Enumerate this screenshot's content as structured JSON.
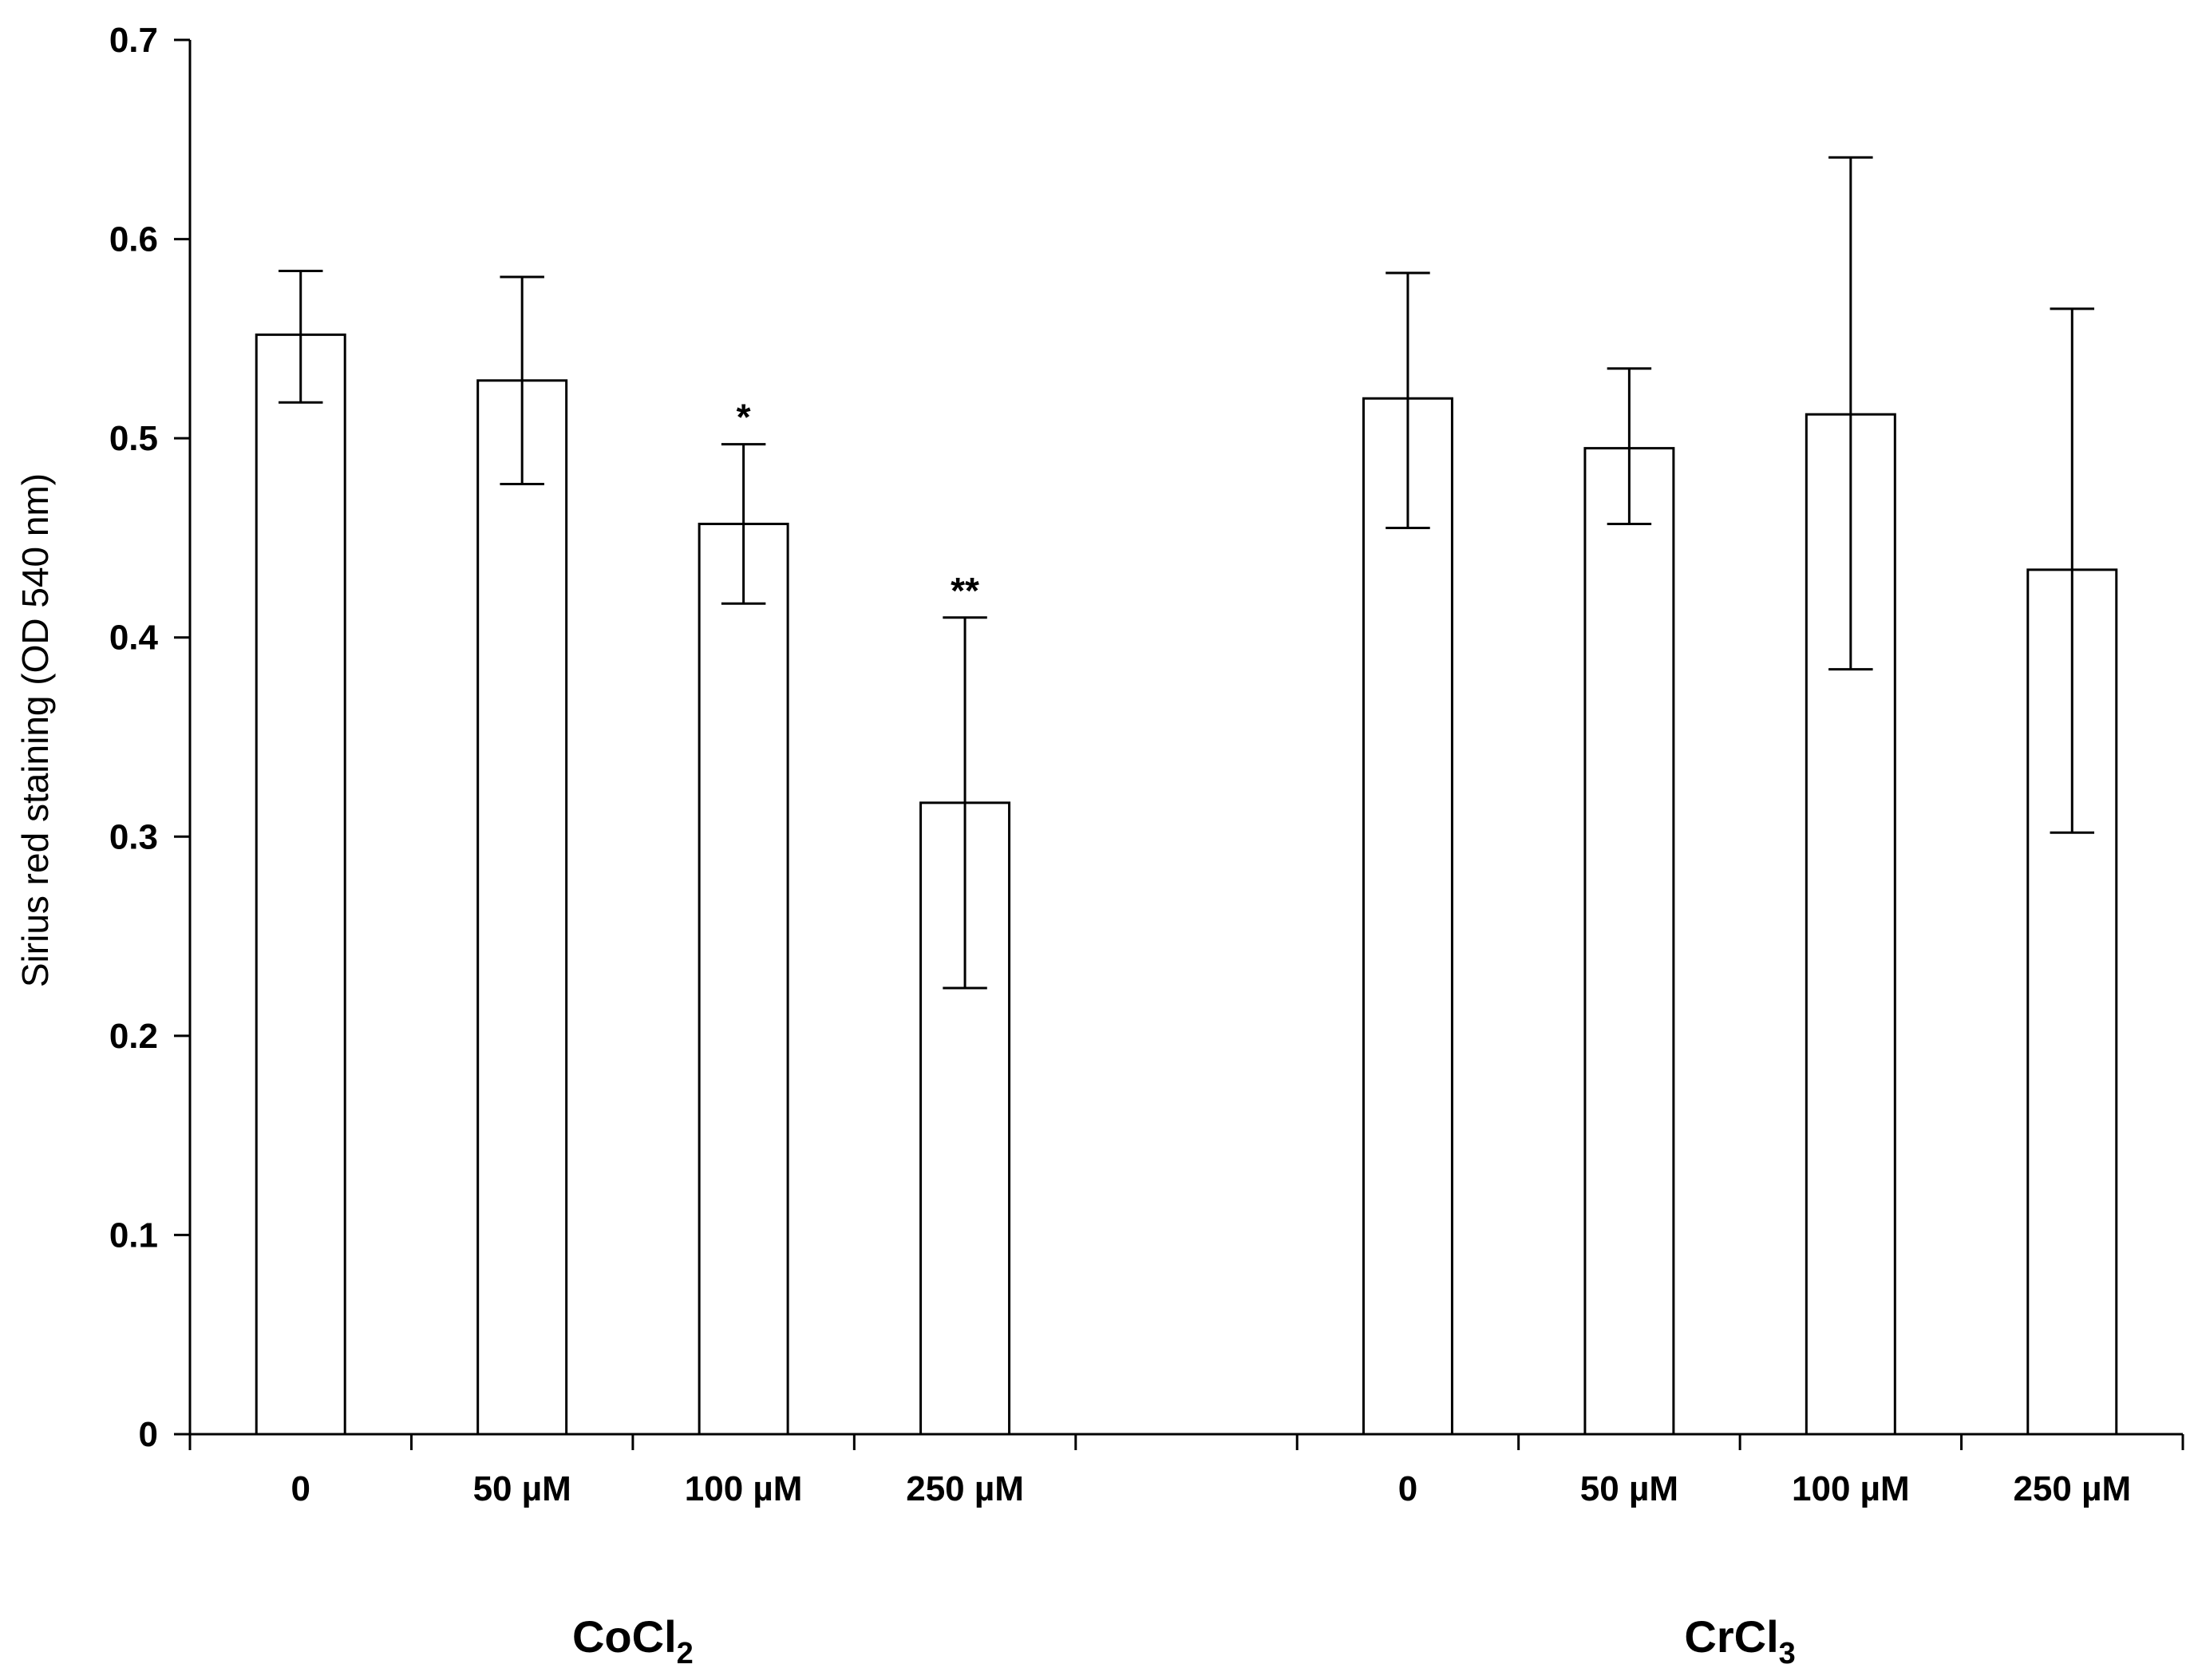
{
  "chart_data": {
    "type": "bar",
    "title": "",
    "xlabel": "",
    "ylabel": "Sirius red staining (OD 540 nm)",
    "ylim": [
      0,
      0.7
    ],
    "yticks": [
      "0",
      "0.1",
      "0.2",
      "0.3",
      "0.4",
      "0.5",
      "0.6",
      "0.7"
    ],
    "grid": false,
    "colors": {
      "bar_fill": "#ffffff",
      "stroke": "#000000"
    },
    "groups": [
      {
        "label": "CoCl",
        "subscript": "2",
        "categories": [
          "0",
          "50 µM",
          "100 µM",
          "250 µM"
        ],
        "values": [
          0.552,
          0.529,
          0.457,
          0.317
        ],
        "error_upper": [
          0.584,
          0.581,
          0.497,
          0.41
        ],
        "error_lower": [
          0.518,
          0.477,
          0.417,
          0.224
        ],
        "annotations": [
          "",
          "",
          "*",
          "**"
        ]
      },
      {
        "label": "CrCl",
        "subscript": "3",
        "categories": [
          "0",
          "50 µM",
          "100 µM",
          "250 µM"
        ],
        "values": [
          0.52,
          0.495,
          0.512,
          0.434
        ],
        "error_upper": [
          0.583,
          0.535,
          0.641,
          0.565
        ],
        "error_lower": [
          0.455,
          0.457,
          0.384,
          0.302
        ],
        "annotations": [
          "",
          "",
          "",
          ""
        ]
      }
    ]
  }
}
